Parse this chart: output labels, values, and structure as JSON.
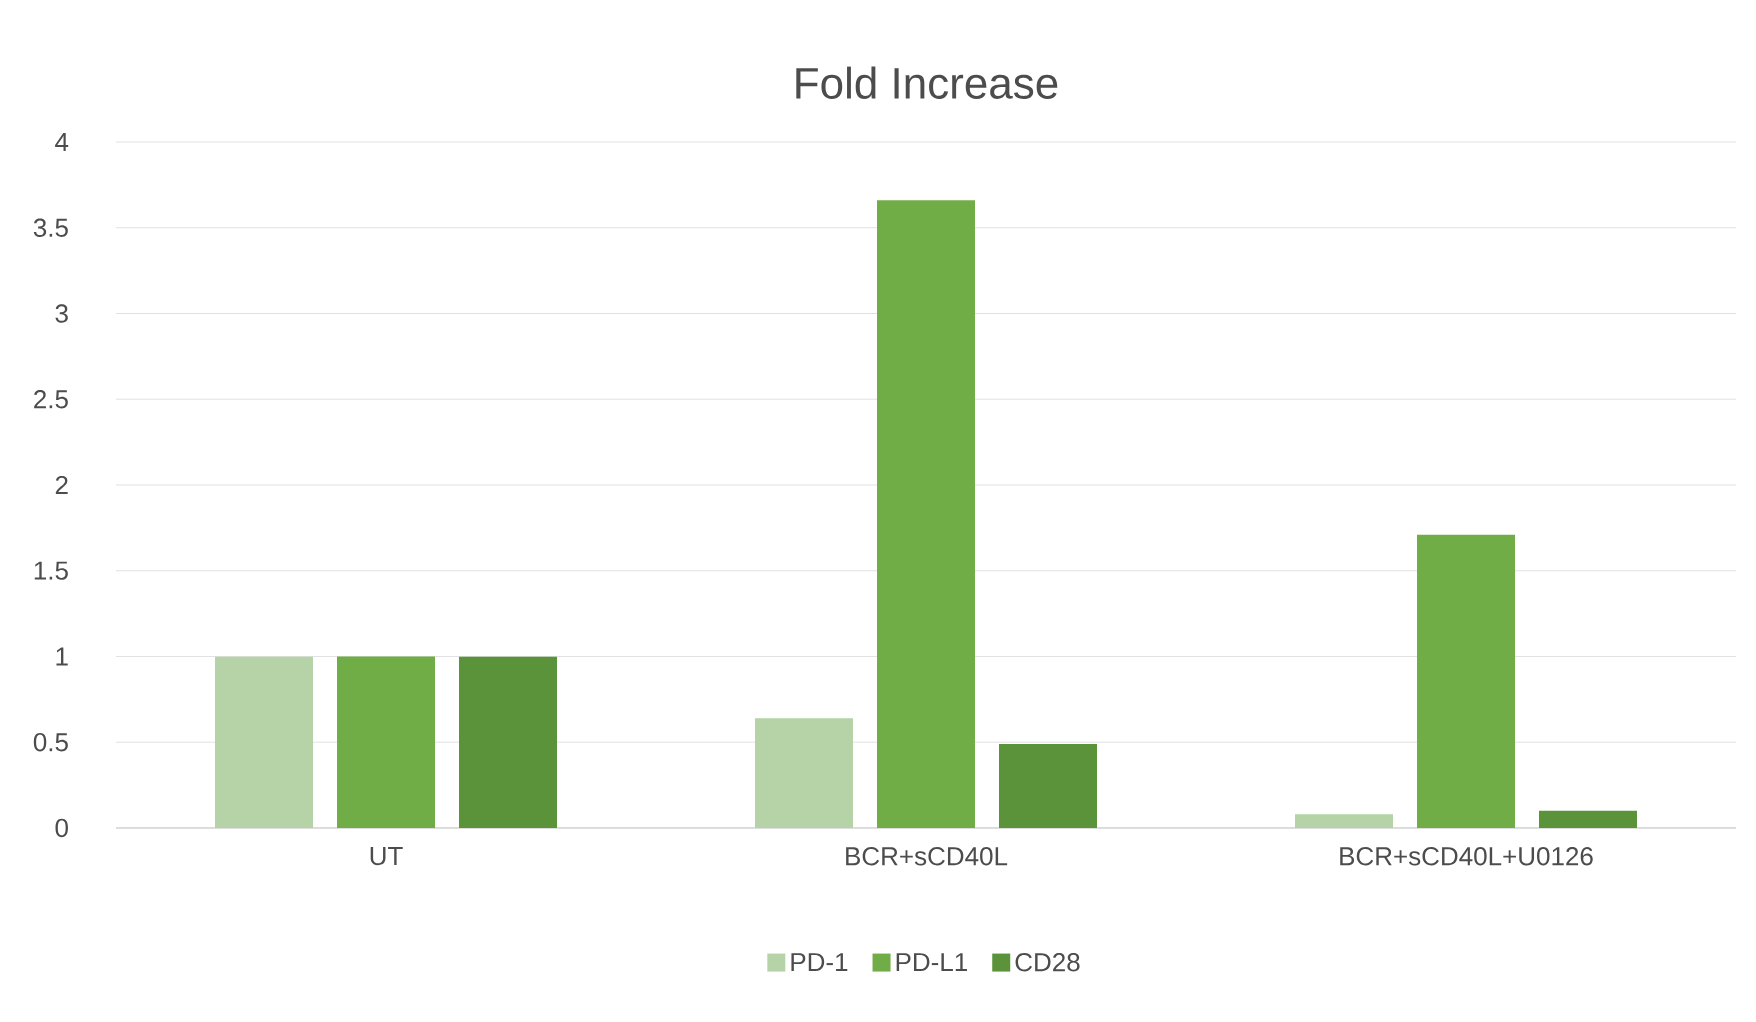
{
  "chart_data": {
    "type": "bar",
    "title": "Fold Increase",
    "categories": [
      "UT",
      "BCR+sCD40L",
      "BCR+sCD40L+U0126"
    ],
    "series": [
      {
        "name": "PD-1",
        "color": "#b5d3a7",
        "values": [
          1,
          0.64,
          0.08
        ]
      },
      {
        "name": "PD-L1",
        "color": "#70ad47",
        "values": [
          1,
          3.66,
          1.71
        ]
      },
      {
        "name": "CD28",
        "color": "#5a9339",
        "values": [
          1,
          0.49,
          0.1
        ]
      }
    ],
    "ylim": [
      0,
      4
    ],
    "yticks": [
      0,
      0.5,
      1,
      1.5,
      2,
      2.5,
      3,
      3.5,
      4
    ],
    "grid": "y",
    "legend": "bottom"
  }
}
